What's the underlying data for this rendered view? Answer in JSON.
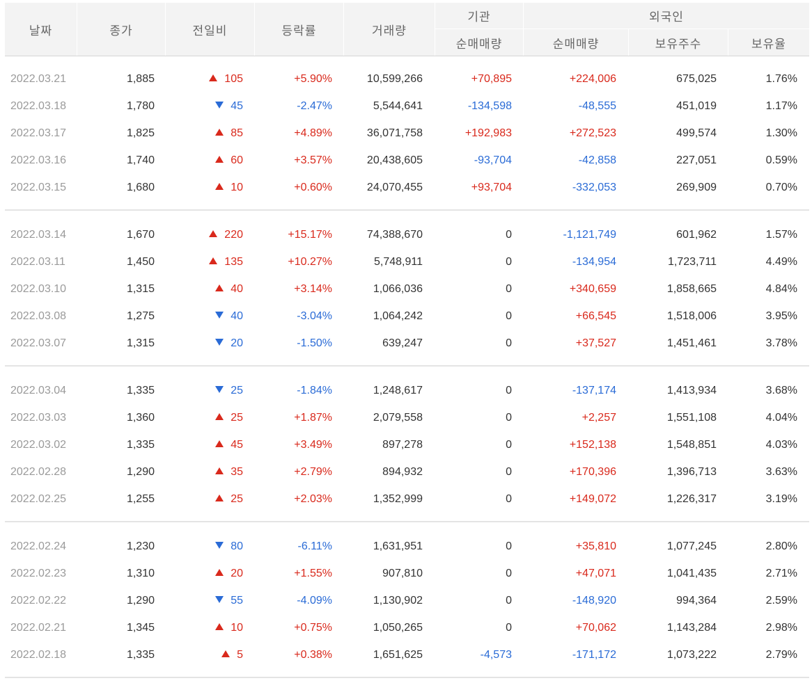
{
  "header": {
    "date": "날짜",
    "close": "종가",
    "change": "전일비",
    "rate": "등락률",
    "volume": "거래량",
    "inst": "기관",
    "inst_net": "순매매량",
    "foreign": "외국인",
    "foreign_net": "순매매량",
    "foreign_hold": "보유주수",
    "foreign_ratio": "보유율"
  },
  "colors": {
    "up": "#d9291c",
    "down": "#2a6bd6",
    "header_bg": "#f3f3f3",
    "date_text": "#9a9a9a"
  },
  "groups": [
    {
      "rows": [
        {
          "date": "2022.03.21",
          "close": "1,885",
          "change": "105",
          "dir": "up",
          "rate": "+5.90%",
          "volume": "10,599,266",
          "inst": "+70,895",
          "foreign": "+224,006",
          "hold": "675,025",
          "ratio": "1.76%"
        },
        {
          "date": "2022.03.18",
          "close": "1,780",
          "change": "45",
          "dir": "down",
          "rate": "-2.47%",
          "volume": "5,544,641",
          "inst": "-134,598",
          "foreign": "-48,555",
          "hold": "451,019",
          "ratio": "1.17%"
        },
        {
          "date": "2022.03.17",
          "close": "1,825",
          "change": "85",
          "dir": "up",
          "rate": "+4.89%",
          "volume": "36,071,758",
          "inst": "+192,983",
          "foreign": "+272,523",
          "hold": "499,574",
          "ratio": "1.30%"
        },
        {
          "date": "2022.03.16",
          "close": "1,740",
          "change": "60",
          "dir": "up",
          "rate": "+3.57%",
          "volume": "20,438,605",
          "inst": "-93,704",
          "foreign": "-42,858",
          "hold": "227,051",
          "ratio": "0.59%"
        },
        {
          "date": "2022.03.15",
          "close": "1,680",
          "change": "10",
          "dir": "up",
          "rate": "+0.60%",
          "volume": "24,070,455",
          "inst": "+93,704",
          "foreign": "-332,053",
          "hold": "269,909",
          "ratio": "0.70%"
        }
      ]
    },
    {
      "rows": [
        {
          "date": "2022.03.14",
          "close": "1,670",
          "change": "220",
          "dir": "up",
          "rate": "+15.17%",
          "volume": "74,388,670",
          "inst": "0",
          "foreign": "-1,121,749",
          "hold": "601,962",
          "ratio": "1.57%"
        },
        {
          "date": "2022.03.11",
          "close": "1,450",
          "change": "135",
          "dir": "up",
          "rate": "+10.27%",
          "volume": "5,748,911",
          "inst": "0",
          "foreign": "-134,954",
          "hold": "1,723,711",
          "ratio": "4.49%"
        },
        {
          "date": "2022.03.10",
          "close": "1,315",
          "change": "40",
          "dir": "up",
          "rate": "+3.14%",
          "volume": "1,066,036",
          "inst": "0",
          "foreign": "+340,659",
          "hold": "1,858,665",
          "ratio": "4.84%"
        },
        {
          "date": "2022.03.08",
          "close": "1,275",
          "change": "40",
          "dir": "down",
          "rate": "-3.04%",
          "volume": "1,064,242",
          "inst": "0",
          "foreign": "+66,545",
          "hold": "1,518,006",
          "ratio": "3.95%"
        },
        {
          "date": "2022.03.07",
          "close": "1,315",
          "change": "20",
          "dir": "down",
          "rate": "-1.50%",
          "volume": "639,247",
          "inst": "0",
          "foreign": "+37,527",
          "hold": "1,451,461",
          "ratio": "3.78%"
        }
      ]
    },
    {
      "rows": [
        {
          "date": "2022.03.04",
          "close": "1,335",
          "change": "25",
          "dir": "down",
          "rate": "-1.84%",
          "volume": "1,248,617",
          "inst": "0",
          "foreign": "-137,174",
          "hold": "1,413,934",
          "ratio": "3.68%"
        },
        {
          "date": "2022.03.03",
          "close": "1,360",
          "change": "25",
          "dir": "up",
          "rate": "+1.87%",
          "volume": "2,079,558",
          "inst": "0",
          "foreign": "+2,257",
          "hold": "1,551,108",
          "ratio": "4.04%"
        },
        {
          "date": "2022.03.02",
          "close": "1,335",
          "change": "45",
          "dir": "up",
          "rate": "+3.49%",
          "volume": "897,278",
          "inst": "0",
          "foreign": "+152,138",
          "hold": "1,548,851",
          "ratio": "4.03%"
        },
        {
          "date": "2022.02.28",
          "close": "1,290",
          "change": "35",
          "dir": "up",
          "rate": "+2.79%",
          "volume": "894,932",
          "inst": "0",
          "foreign": "+170,396",
          "hold": "1,396,713",
          "ratio": "3.63%"
        },
        {
          "date": "2022.02.25",
          "close": "1,255",
          "change": "25",
          "dir": "up",
          "rate": "+2.03%",
          "volume": "1,352,999",
          "inst": "0",
          "foreign": "+149,072",
          "hold": "1,226,317",
          "ratio": "3.19%"
        }
      ]
    },
    {
      "rows": [
        {
          "date": "2022.02.24",
          "close": "1,230",
          "change": "80",
          "dir": "down",
          "rate": "-6.11%",
          "volume": "1,631,951",
          "inst": "0",
          "foreign": "+35,810",
          "hold": "1,077,245",
          "ratio": "2.80%"
        },
        {
          "date": "2022.02.23",
          "close": "1,310",
          "change": "20",
          "dir": "up",
          "rate": "+1.55%",
          "volume": "907,810",
          "inst": "0",
          "foreign": "+47,071",
          "hold": "1,041,435",
          "ratio": "2.71%"
        },
        {
          "date": "2022.02.22",
          "close": "1,290",
          "change": "55",
          "dir": "down",
          "rate": "-4.09%",
          "volume": "1,130,902",
          "inst": "0",
          "foreign": "-148,920",
          "hold": "994,364",
          "ratio": "2.59%"
        },
        {
          "date": "2022.02.21",
          "close": "1,345",
          "change": "10",
          "dir": "up",
          "rate": "+0.75%",
          "volume": "1,050,265",
          "inst": "0",
          "foreign": "+70,062",
          "hold": "1,143,284",
          "ratio": "2.98%"
        },
        {
          "date": "2022.02.18",
          "close": "1,335",
          "change": "5",
          "dir": "up",
          "rate": "+0.38%",
          "volume": "1,651,625",
          "inst": "-4,573",
          "foreign": "-171,172",
          "hold": "1,073,222",
          "ratio": "2.79%"
        }
      ]
    }
  ]
}
